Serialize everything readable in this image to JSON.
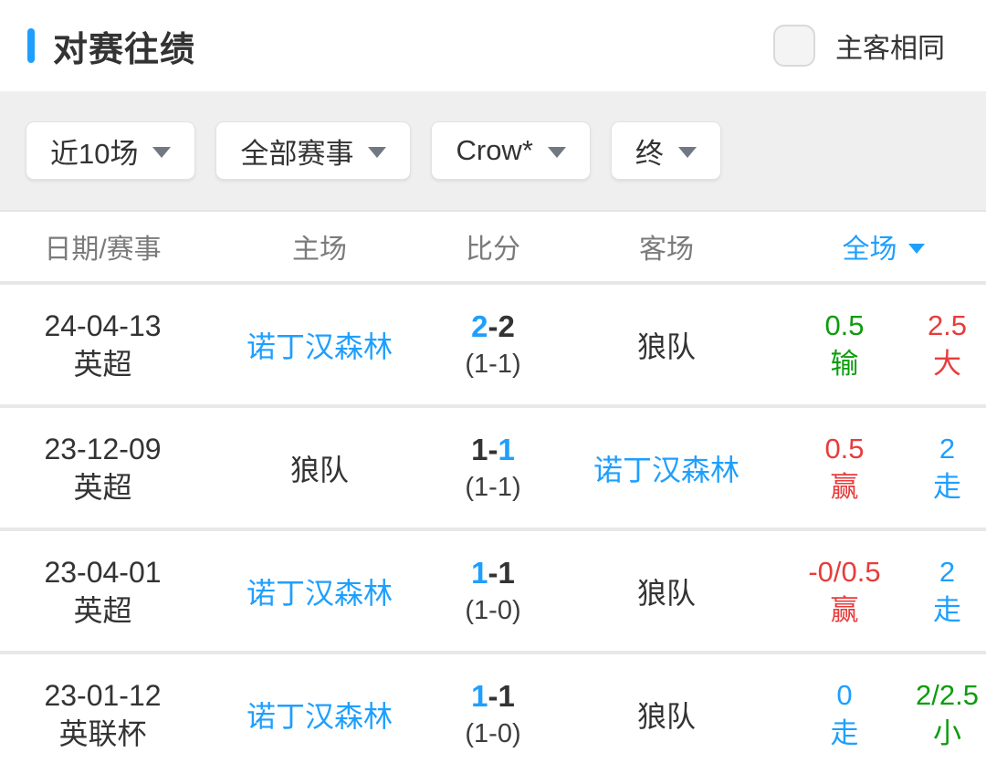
{
  "header": {
    "title": "对赛往绩",
    "checkbox_label": "主客相同"
  },
  "filters": [
    {
      "label": "近10场"
    },
    {
      "label": "全部赛事"
    },
    {
      "label": "Crow*"
    },
    {
      "label": "终"
    }
  ],
  "table": {
    "columns": {
      "date": "日期/赛事",
      "home": "主场",
      "score": "比分",
      "away": "客场",
      "fulltime": "全场"
    },
    "score_sep": "-",
    "rows": [
      {
        "date": "24-04-13",
        "competition": "英超",
        "home": "诺丁汉森林",
        "home_color": "blue",
        "score_home": "2",
        "score_home_color": "blue",
        "score_away": "2",
        "score_away_color": "dark",
        "halftime": "(1-1)",
        "away": "狼队",
        "away_color": "dark",
        "handicap": {
          "value": "0.5",
          "result": "输",
          "color": "green"
        },
        "ou": {
          "value": "2.5",
          "result": "大",
          "color": "red"
        }
      },
      {
        "date": "23-12-09",
        "competition": "英超",
        "home": "狼队",
        "home_color": "dark",
        "score_home": "1",
        "score_home_color": "dark",
        "score_away": "1",
        "score_away_color": "blue",
        "halftime": "(1-1)",
        "away": "诺丁汉森林",
        "away_color": "blue",
        "handicap": {
          "value": "0.5",
          "result": "赢",
          "color": "red"
        },
        "ou": {
          "value": "2",
          "result": "走",
          "color": "blue"
        }
      },
      {
        "date": "23-04-01",
        "competition": "英超",
        "home": "诺丁汉森林",
        "home_color": "blue",
        "score_home": "1",
        "score_home_color": "blue",
        "score_away": "1",
        "score_away_color": "dark",
        "halftime": "(1-0)",
        "away": "狼队",
        "away_color": "dark",
        "handicap": {
          "value": "-0/0.5",
          "result": "赢",
          "color": "red"
        },
        "ou": {
          "value": "2",
          "result": "走",
          "color": "blue"
        }
      },
      {
        "date": "23-01-12",
        "competition": "英联杯",
        "home": "诺丁汉森林",
        "home_color": "blue",
        "score_home": "1",
        "score_home_color": "blue",
        "score_away": "1",
        "score_away_color": "dark",
        "halftime": "(1-0)",
        "away": "狼队",
        "away_color": "dark",
        "handicap": {
          "value": "0",
          "result": "走",
          "color": "blue"
        },
        "ou": {
          "value": "2/2.5",
          "result": "小",
          "color": "green"
        }
      }
    ]
  },
  "colors": {
    "accent_blue": "#1e9fff",
    "win_red": "#e83c3c",
    "green": "#0e9c0e",
    "dark_text": "#333333",
    "header_gray": "#7b7b7b",
    "filter_bar_bg": "#efefef"
  }
}
